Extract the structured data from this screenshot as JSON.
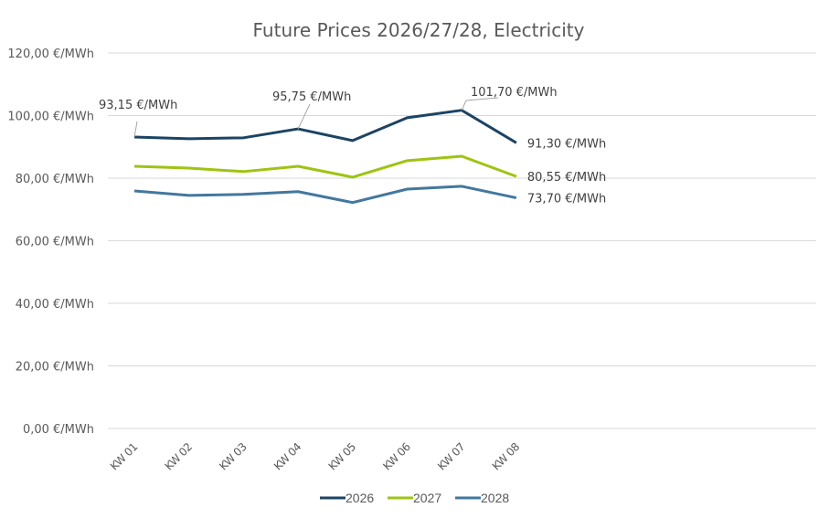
{
  "chart_data": {
    "type": "line",
    "title": "Future Prices 2026/27/28, Electricity",
    "xlabel": "",
    "ylabel": "",
    "categories": [
      "KW 01",
      "KW 02",
      "KW 03",
      "KW 04",
      "KW 05",
      "KW 06",
      "KW 07",
      "KW 08"
    ],
    "ylim": [
      0,
      120
    ],
    "yticks": [
      0,
      20,
      40,
      60,
      80,
      100,
      120
    ],
    "ytick_labels": [
      "0,00 €/MWh",
      "20,00 €/MWh",
      "40,00 €/MWh",
      "60,00 €/MWh",
      "80,00 €/MWh",
      "100,00 €/MWh",
      "120,00 €/MWh"
    ],
    "grid": true,
    "legend_position": "bottom",
    "series": [
      {
        "name": "2026",
        "color": "#1b4464",
        "values": [
          93.15,
          92.6,
          92.9,
          95.75,
          92.0,
          99.3,
          101.7,
          91.3
        ]
      },
      {
        "name": "2027",
        "color": "#9ec410",
        "values": [
          83.8,
          83.2,
          82.1,
          83.8,
          80.3,
          85.6,
          87.0,
          80.55
        ]
      },
      {
        "name": "2028",
        "color": "#42789f",
        "values": [
          75.9,
          74.5,
          74.8,
          75.7,
          72.2,
          76.5,
          77.4,
          73.7
        ]
      }
    ],
    "annotations": [
      {
        "series": 0,
        "index": 0,
        "text": "93,15 €/MWh",
        "leader": true
      },
      {
        "series": 0,
        "index": 3,
        "text": "95,75 €/MWh",
        "leader": true
      },
      {
        "series": 0,
        "index": 6,
        "text": "101,70 €/MWh",
        "leader": true
      },
      {
        "series": 0,
        "index": 7,
        "text": "91,30 €/MWh",
        "leader": false
      },
      {
        "series": 1,
        "index": 7,
        "text": "80,55 €/MWh",
        "leader": false
      },
      {
        "series": 2,
        "index": 7,
        "text": "73,70 €/MWh",
        "leader": false
      }
    ]
  }
}
